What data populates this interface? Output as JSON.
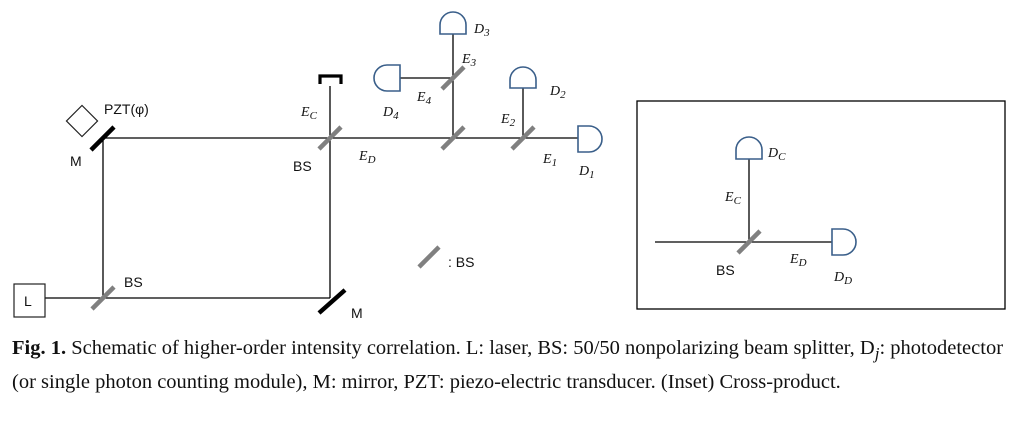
{
  "diagram": {
    "laser_label": "L",
    "pzt_label": "PZT(φ)",
    "mirror_label": "M",
    "bs_label": "BS",
    "field_base": "E",
    "detector_base": "D",
    "subscripts": {
      "c": "C",
      "d": "D",
      "one": "1",
      "two": "2",
      "three": "3",
      "four": "4"
    },
    "legend_label": ": BS"
  },
  "caption": {
    "label": "Fig. 1.",
    "text_1": " Schematic of higher-order intensity correlation. L: laser, BS: 50/50 nonpolarizing beam splitter,  D",
    "dj_sub": "j",
    "text_2": ": photodetector (or single photon counting module), M: mirror, PZT: piezo-electric transducer. (Inset) Cross-product."
  }
}
